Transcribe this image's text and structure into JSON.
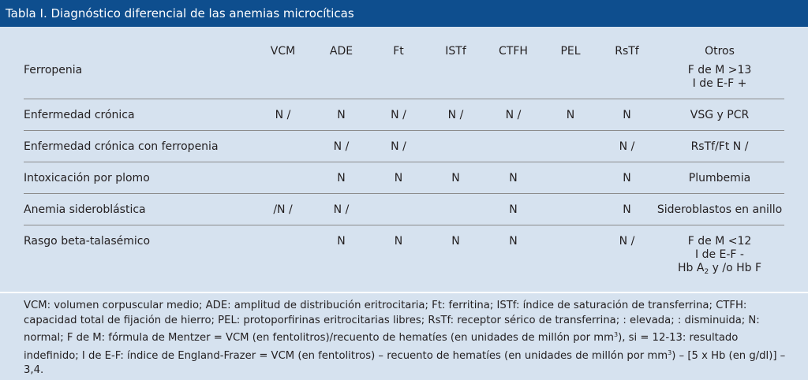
{
  "title": "Tabla I. Diagnóstico diferencial de las anemias microcíticas",
  "columns": [
    "VCM",
    "ADE",
    "Ft",
    "ISTf",
    "CTFH",
    "PEL",
    "RsTf",
    "Otros"
  ],
  "rows": [
    {
      "label": "Ferropenia",
      "cells": [
        "",
        "",
        "",
        "",
        "",
        "",
        ""
      ],
      "otros": [
        "F de M >13",
        "I de E-F +"
      ]
    },
    {
      "label": "Enfermedad crónica",
      "cells": [
        "N / ",
        "N",
        "N / ",
        "N / ",
        "N / ",
        "N",
        "N"
      ],
      "otros": [
        "VSG y PCR "
      ]
    },
    {
      "label": "Enfermedad crónica con ferropenia",
      "cells": [
        "",
        "N / ",
        "N / ",
        "",
        "",
        "",
        "N / "
      ],
      "otros": [
        "RsTf/Ft N / "
      ]
    },
    {
      "label": "Intoxicación por plomo",
      "cells": [
        "",
        "N",
        "N",
        "N",
        "N",
        "",
        "N"
      ],
      "otros": [
        "Plumbemia "
      ]
    },
    {
      "label": "Anemia sideroblástica",
      "cells": [
        " /N / ",
        "N / ",
        "",
        "",
        "N",
        "",
        "N"
      ],
      "otros": [
        "Sideroblastos en anillo"
      ]
    },
    {
      "label": "Rasgo beta-talasémico",
      "cells": [
        "",
        "N",
        "N",
        "N",
        "N",
        "",
        "N / "
      ],
      "otros": [
        "F de M <12",
        "I de E-F -"
      ],
      "otros_hb": {
        "prefix": " Hb A",
        "sub": "2",
        "suffix": " y /o Hb F"
      }
    }
  ],
  "notes": {
    "part1": "VCM: volumen corpuscular medio; ADE: amplitud de distribución eritrocitaria; Ft: ferritina; ISTf: índice de saturación de transferrina; CTFH: capacidad total de fijación de hierro; PEL: protoporfirinas eritrocitarias libres; RsTf: receptor sérico de transferrina; : elevada; : disminuida; N: normal; F de M: fórmula de Mentzer = VCM (en fentolitros)/recuento de hematíes (en unidades de millón por mm",
    "sup1": "3",
    "part2": "), si = 12-13: resultado indefinido; I de E-F: índice de England-Frazer = VCM (en fentolitros) – recuento de hematíes (en unidades de millón por mm",
    "sup2": "3",
    "part3": ") – [5 x Hb (en g/dl)] – 3,4."
  }
}
